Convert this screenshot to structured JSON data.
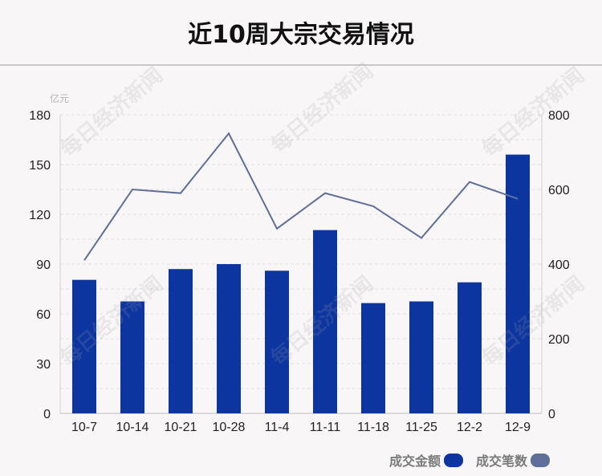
{
  "title": "近10周大宗交易情况",
  "left_unit": "亿元",
  "legend": {
    "amount_label": "成交金额",
    "count_label": "成交笔数"
  },
  "watermark_text": "每日经济新闻",
  "colors": {
    "bar": "#0c35a0",
    "line": "#5e6f99",
    "background": "#f8f6f7"
  },
  "chart_data": {
    "type": "bar",
    "title": "近10周大宗交易情况",
    "categories": [
      "10-7",
      "10-14",
      "10-21",
      "10-28",
      "11-4",
      "11-11",
      "11-18",
      "11-25",
      "12-2",
      "12-9"
    ],
    "series": [
      {
        "name": "成交金额",
        "type": "bar",
        "axis": "left",
        "values": [
          80.5,
          67.5,
          87,
          90,
          86,
          110.5,
          66.5,
          67.5,
          79,
          156
        ]
      },
      {
        "name": "成交笔数",
        "type": "line",
        "axis": "right",
        "values": [
          410,
          600,
          590,
          750,
          495,
          590,
          555,
          470,
          620,
          575
        ]
      }
    ],
    "ylabel": "亿元",
    "ylim": [
      0,
      180
    ],
    "yticks": [
      0,
      30,
      60,
      90,
      120,
      150,
      180
    ],
    "y2lim": [
      0,
      800
    ],
    "y2ticks": [
      0,
      200,
      400,
      600,
      800
    ],
    "grid": true,
    "legend_position": "bottom-right"
  }
}
